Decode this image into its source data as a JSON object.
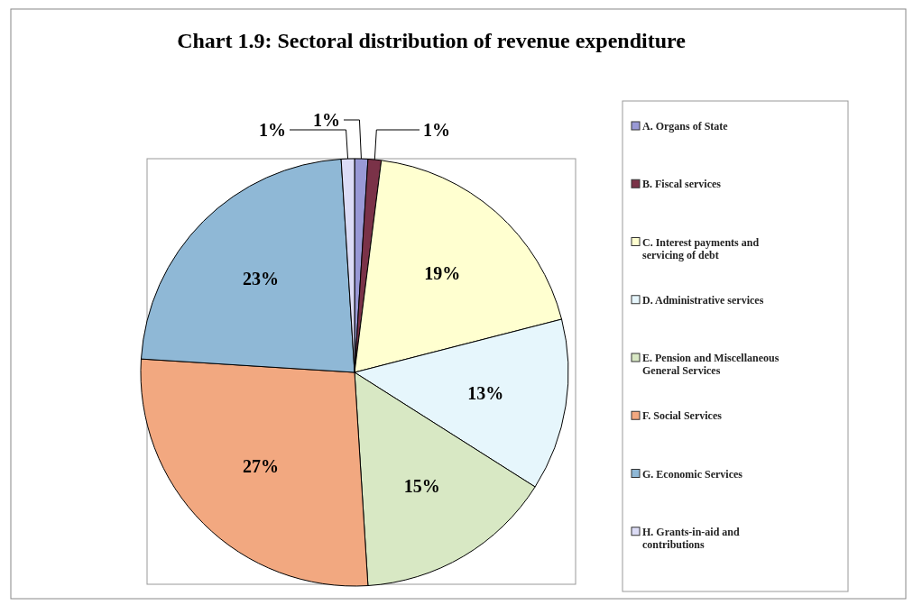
{
  "chart_data": {
    "type": "pie",
    "title": "Chart 1.9: Sectoral distribution of revenue expenditure",
    "categories": [
      "A. Organs of State",
      "B. Fiscal services",
      "C. Interest payments and servicing of debt",
      "D. Administrative services",
      "E. Pension and Miscellaneous General Services",
      "F. Social Services",
      "G. Economic Services",
      "H. Grants-in-aid and contributions"
    ],
    "values": [
      1,
      1,
      19,
      13,
      15,
      27,
      23,
      1
    ],
    "colors": [
      "#9999d6",
      "#7a3248",
      "#ffffd0",
      "#e6f6fc",
      "#d8e8c4",
      "#f2a880",
      "#8fb8d6",
      "#dcdcf6"
    ],
    "value_labels": [
      "1%",
      "1%",
      "19%",
      "13%",
      "15%",
      "27%",
      "23%",
      "1%"
    ],
    "legend": "right"
  }
}
